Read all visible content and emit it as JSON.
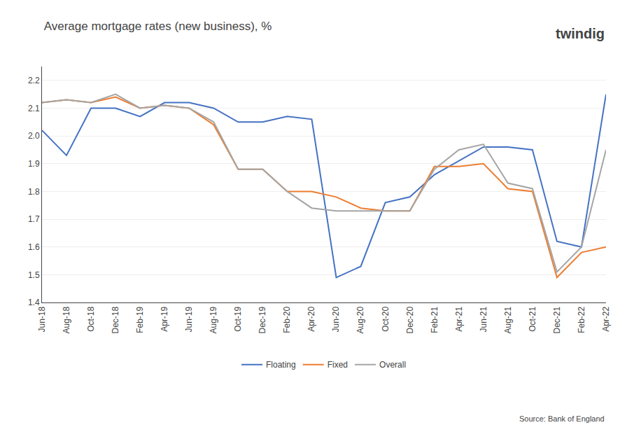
{
  "chart_data": {
    "type": "line",
    "title": "Average mortgage rates (new business), %",
    "annotations": [
      "Source: Bank of England",
      "twindig"
    ],
    "categories": [
      "Jun-18",
      "Aug-18",
      "Oct-18",
      "Dec-18",
      "Feb-19",
      "Apr-19",
      "Jun-19",
      "Aug-19",
      "Oct-19",
      "Dec-19",
      "Feb-20",
      "Apr-20",
      "Jun-20",
      "Aug-20",
      "Oct-20",
      "Dec-20",
      "Feb-21",
      "Apr-21",
      "Jun-21",
      "Aug-21",
      "Oct-21",
      "Dec-21",
      "Feb-22",
      "Apr-22"
    ],
    "series": [
      {
        "name": "Floating",
        "color": "#4472C4",
        "values": [
          2.02,
          1.93,
          2.1,
          2.1,
          2.07,
          2.12,
          2.12,
          2.1,
          2.05,
          2.05,
          2.07,
          2.06,
          1.49,
          1.53,
          1.76,
          1.78,
          1.86,
          1.91,
          1.96,
          1.96,
          1.95,
          1.62,
          1.6,
          2.15
        ]
      },
      {
        "name": "Fixed",
        "color": "#ED7D31",
        "values": [
          2.12,
          2.13,
          2.12,
          2.14,
          2.1,
          2.11,
          2.1,
          2.04,
          1.88,
          1.88,
          1.8,
          1.8,
          1.78,
          1.74,
          1.73,
          1.73,
          1.89,
          1.89,
          1.9,
          1.81,
          1.8,
          1.49,
          1.58,
          1.6
        ]
      },
      {
        "name": "Overall",
        "color": "#A5A5A5",
        "values": [
          2.12,
          2.13,
          2.12,
          2.15,
          2.1,
          2.11,
          2.1,
          2.05,
          1.88,
          1.88,
          1.8,
          1.74,
          1.73,
          1.73,
          1.73,
          1.73,
          1.88,
          1.95,
          1.97,
          1.83,
          1.81,
          1.51,
          1.6,
          1.95
        ]
      }
    ],
    "ylim": [
      1.4,
      2.25
    ],
    "yticks": [
      1.4,
      1.5,
      1.6,
      1.7,
      1.8,
      1.9,
      {
        "value": 2,
        "label": "2.0"
      },
      2.1,
      2.2
    ],
    "grid": true,
    "legend": "bottom"
  }
}
